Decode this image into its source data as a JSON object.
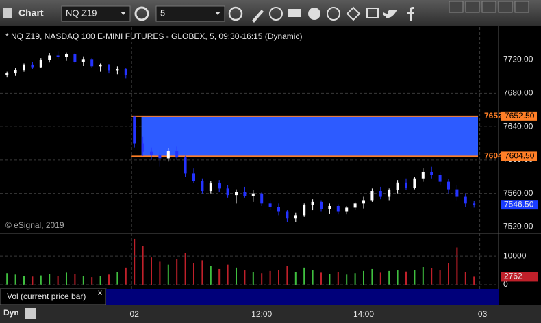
{
  "toolbar": {
    "app": "Chart",
    "symbol": "NQ Z19",
    "interval": "5"
  },
  "chart_data": {
    "type": "candlestick",
    "title": "* NQ Z19, NASDAQ 100 E-MINI FUTURES - GLOBEX, 5, 09:30-16:15 (Dynamic)",
    "copyright": "© eSignal, 2019",
    "x": [
      0,
      1,
      2,
      3,
      4,
      5,
      6,
      7,
      8,
      9,
      10,
      11,
      12,
      13,
      14,
      15,
      16,
      17,
      18,
      19,
      20,
      21,
      22,
      23,
      24,
      25,
      26,
      27,
      28,
      29,
      30,
      31,
      32,
      33,
      34,
      35,
      36,
      37,
      38,
      39,
      40,
      41,
      42,
      43,
      44,
      45,
      46,
      47,
      48,
      49,
      50,
      51,
      52,
      53,
      54,
      55
    ],
    "open": [
      7702,
      7704,
      7708,
      7714,
      7711,
      7720,
      7725,
      7723,
      7727,
      7718,
      7721,
      7712,
      7714,
      7707,
      7709,
      7652,
      7620,
      7610,
      7606,
      7602,
      7611,
      7603,
      7584,
      7575,
      7563,
      7572,
      7566,
      7558,
      7562,
      7557,
      7560,
      7548,
      7544,
      7538,
      7530,
      7534,
      7546,
      7550,
      7541,
      7545,
      7538,
      7543,
      7548,
      7552,
      7563,
      7556,
      7564,
      7573,
      7567,
      7578,
      7586,
      7582,
      7574,
      7565,
      7556,
      7548
    ],
    "high": [
      7706,
      7710,
      7716,
      7718,
      7722,
      7728,
      7730,
      7729,
      7728,
      7724,
      7722,
      7716,
      7715,
      7712,
      7710,
      7653,
      7628,
      7615,
      7612,
      7614,
      7616,
      7605,
      7590,
      7578,
      7575,
      7576,
      7570,
      7565,
      7568,
      7564,
      7562,
      7552,
      7548,
      7540,
      7537,
      7548,
      7553,
      7552,
      7548,
      7547,
      7545,
      7550,
      7556,
      7566,
      7568,
      7566,
      7576,
      7578,
      7580,
      7590,
      7592,
      7586,
      7577,
      7570,
      7560,
      7551
    ],
    "low": [
      7699,
      7701,
      7706,
      7709,
      7710,
      7717,
      7721,
      7719,
      7716,
      7713,
      7710,
      7706,
      7704,
      7703,
      7698,
      7615,
      7605,
      7600,
      7592,
      7598,
      7600,
      7580,
      7572,
      7560,
      7560,
      7562,
      7555,
      7548,
      7555,
      7550,
      7545,
      7540,
      7534,
      7526,
      7526,
      7532,
      7540,
      7538,
      7536,
      7535,
      7535,
      7540,
      7542,
      7550,
      7553,
      7552,
      7560,
      7564,
      7565,
      7574,
      7578,
      7570,
      7560,
      7552,
      7544,
      7543
    ],
    "close": [
      7704,
      7708,
      7714,
      7711,
      7720,
      7725,
      7723,
      7727,
      7718,
      7721,
      7712,
      7714,
      7707,
      7709,
      7702,
      7620,
      7610,
      7606,
      7602,
      7611,
      7603,
      7584,
      7575,
      7563,
      7572,
      7566,
      7558,
      7562,
      7557,
      7560,
      7548,
      7544,
      7538,
      7530,
      7534,
      7546,
      7550,
      7541,
      7545,
      7538,
      7543,
      7548,
      7552,
      7563,
      7556,
      7564,
      7573,
      7567,
      7578,
      7586,
      7582,
      7574,
      7565,
      7556,
      7548,
      7546.5
    ],
    "up_color": "#ffffff",
    "down_color": "#2433ff",
    "xlim": [
      -0.5,
      57
    ],
    "xticks": [
      {
        "value": 15,
        "label": "02"
      },
      {
        "value": 30,
        "label": "12:00"
      },
      {
        "value": 42,
        "label": "14:00"
      },
      {
        "value": 56,
        "label": "03"
      }
    ],
    "ylim": [
      7513,
      7759
    ],
    "yticks": [
      {
        "value": 7520,
        "label": "7520.00"
      },
      {
        "value": 7560,
        "label": "7560.00"
      },
      {
        "value": 7600,
        "label": "7600.00"
      },
      {
        "value": 7640,
        "label": "7640.00"
      },
      {
        "value": 7680,
        "label": "7680.00"
      },
      {
        "value": 7720,
        "label": "7720.00"
      }
    ],
    "grid": true,
    "levels": [
      {
        "value": 7652.5,
        "label": "7652.50"
      },
      {
        "value": 7604.5,
        "label": "7604.50"
      }
    ],
    "level_color": "#ff7f27",
    "zone_color": "#2d5bff",
    "last_price_label": "7546.50",
    "volume": {
      "name": "Vol (current price bar)",
      "values": [
        4000,
        3500,
        3000,
        2800,
        3200,
        3600,
        3000,
        4200,
        3800,
        3000,
        2600,
        3100,
        3500,
        4400,
        6000,
        16000,
        13500,
        9500,
        8000,
        7000,
        9000,
        11000,
        7500,
        8500,
        6500,
        5500,
        7000,
        6000,
        5000,
        4500,
        4000,
        4800,
        5200,
        6500,
        4500,
        6000,
        5000,
        4200,
        3800,
        4500,
        3500,
        4000,
        4800,
        5500,
        4200,
        4800,
        5000,
        4600,
        5200,
        6200,
        5800,
        5000,
        7500,
        13000,
        4500,
        2762
      ],
      "ylim": [
        0,
        16700
      ],
      "yticks": [
        0,
        10000
      ],
      "up_color": "#3fbf3f",
      "down_color": "#c0202a"
    },
    "footer": "Dyn"
  }
}
